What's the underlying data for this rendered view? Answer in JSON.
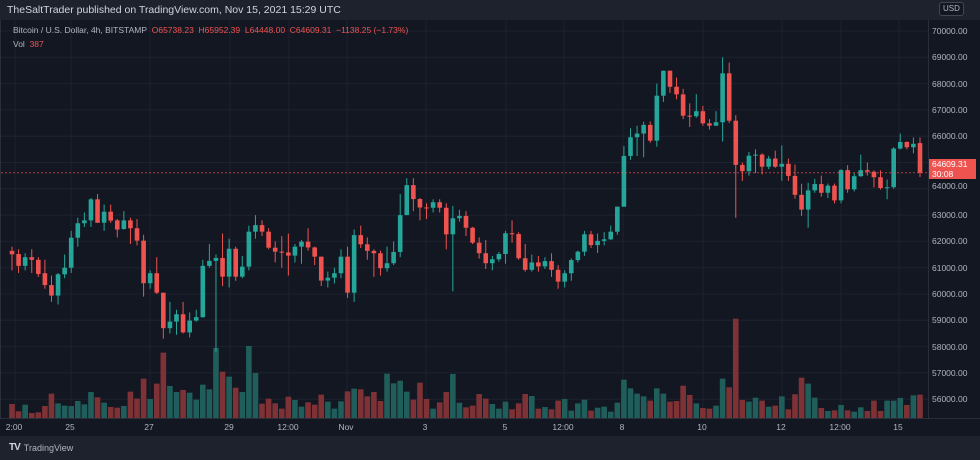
{
  "publisher_line": "TheSaltTrader published on TradingView.com, Nov 15, 2021 15:29 UTC",
  "legend": {
    "symbol": "Bitcoin / U.S. Dollar, 4h, BITSTAMP",
    "open": "O65738.23",
    "high": "H65952.39",
    "low": "L64448.00",
    "close": "C64609.31",
    "change": "−1138.25 (−1.73%)",
    "vol_label": "Vol",
    "vol_value": "387"
  },
  "price_axis": {
    "currency": "USD",
    "labels": [
      "70000.00",
      "69000.00",
      "68000.00",
      "67000.00",
      "66000.00",
      "65000.00",
      "64000.00",
      "63000.00",
      "62000.00",
      "61000.00",
      "60000.00",
      "59000.00",
      "58000.00",
      "57000.00",
      "56000.00"
    ],
    "last_price": "64609.31",
    "countdown": "30:08"
  },
  "time_axis": [
    "2:00",
    "25",
    "27",
    "29",
    "12:00",
    "Nov",
    "3",
    "5",
    "12:00",
    "8",
    "10",
    "12",
    "12:00",
    "15"
  ],
  "footer": {
    "brand": "TradingView"
  },
  "colors": {
    "up": "#26a69a",
    "down": "#ef5350",
    "vol_up": "#1f5e5b",
    "vol_down": "#7f3236",
    "bg": "#131722"
  },
  "chart_data": {
    "type": "candlestick",
    "symbol": "BTCUSD",
    "interval": "4h",
    "ylim": [
      55500,
      70500
    ],
    "last_price": 64609.31,
    "ohlc": [
      [
        61640,
        61800,
        60900,
        61510
      ],
      [
        61520,
        61700,
        60800,
        61070
      ],
      [
        61070,
        61550,
        60900,
        61400
      ],
      [
        61400,
        61700,
        60800,
        61300
      ],
      [
        61300,
        61400,
        60650,
        60760
      ],
      [
        60790,
        61300,
        60200,
        60340
      ],
      [
        60340,
        60700,
        59700,
        59940
      ],
      [
        59940,
        60800,
        59600,
        60750
      ],
      [
        60750,
        61500,
        60600,
        61000
      ],
      [
        61000,
        62400,
        60800,
        62140
      ],
      [
        62140,
        62900,
        61800,
        62690
      ],
      [
        62690,
        63100,
        62550,
        62800
      ],
      [
        62800,
        63650,
        62550,
        63600
      ],
      [
        63600,
        63800,
        62700,
        62710
      ],
      [
        62710,
        63400,
        62400,
        63130
      ],
      [
        63130,
        63400,
        62700,
        62790
      ],
      [
        62800,
        62850,
        62150,
        62450
      ],
      [
        62470,
        63150,
        62450,
        62800
      ],
      [
        62800,
        62900,
        61900,
        62500
      ],
      [
        62500,
        62850,
        61850,
        62030
      ],
      [
        62030,
        62250,
        59900,
        60410
      ],
      [
        60410,
        60900,
        60200,
        60790
      ],
      [
        60790,
        61400,
        60000,
        60050
      ],
      [
        60050,
        60000,
        58300,
        58700
      ],
      [
        58700,
        59700,
        58500,
        58950
      ],
      [
        58950,
        59400,
        58450,
        59230
      ],
      [
        59230,
        59700,
        58500,
        58540
      ],
      [
        58540,
        59300,
        58350,
        58990
      ],
      [
        58990,
        59400,
        58950,
        59120
      ],
      [
        59120,
        61300,
        59100,
        61070
      ],
      [
        61070,
        61900,
        61000,
        61260
      ],
      [
        61260,
        61500,
        57800,
        61370
      ],
      [
        61370,
        62300,
        60300,
        60660
      ],
      [
        60660,
        62100,
        60250,
        61720
      ],
      [
        61720,
        61800,
        60500,
        60660
      ],
      [
        60660,
        61450,
        60600,
        61040
      ],
      [
        61040,
        62600,
        60900,
        62370
      ],
      [
        62370,
        63000,
        62100,
        62620
      ],
      [
        62620,
        62800,
        62200,
        62370
      ],
      [
        62370,
        62500,
        61700,
        61760
      ],
      [
        61760,
        62000,
        61200,
        61610
      ],
      [
        61610,
        62200,
        61000,
        61580
      ],
      [
        61580,
        62300,
        60700,
        61460
      ],
      [
        61460,
        61900,
        61200,
        61800
      ],
      [
        61800,
        62050,
        61150,
        61990
      ],
      [
        61990,
        62500,
        61650,
        61770
      ],
      [
        61770,
        61800,
        61100,
        61420
      ],
      [
        61420,
        61420,
        60300,
        60510
      ],
      [
        60510,
        60850,
        60250,
        60620
      ],
      [
        60620,
        61000,
        60400,
        60790
      ],
      [
        60790,
        61700,
        60600,
        61420
      ],
      [
        61420,
        61800,
        59850,
        60050
      ],
      [
        60050,
        62450,
        59700,
        62240
      ],
      [
        62240,
        62600,
        61750,
        61890
      ],
      [
        61890,
        62150,
        61300,
        61640
      ],
      [
        61640,
        61700,
        60650,
        61550
      ],
      [
        61550,
        61650,
        60700,
        60980
      ],
      [
        60980,
        61800,
        60850,
        61170
      ],
      [
        61170,
        62000,
        61100,
        61600
      ],
      [
        61600,
        63800,
        61400,
        63000
      ],
      [
        63000,
        64400,
        63000,
        64140
      ],
      [
        64140,
        64400,
        63150,
        63610
      ],
      [
        63610,
        63650,
        62800,
        63290
      ],
      [
        63290,
        63450,
        62850,
        63280
      ],
      [
        63280,
        63600,
        63100,
        63490
      ],
      [
        63490,
        63600,
        63100,
        63280
      ],
      [
        63280,
        63450,
        61700,
        62270
      ],
      [
        62270,
        63350,
        60100,
        62880
      ],
      [
        62880,
        63200,
        62750,
        62970
      ],
      [
        62970,
        63150,
        62200,
        62520
      ],
      [
        62520,
        62550,
        61900,
        61950
      ],
      [
        61950,
        62150,
        61350,
        61550
      ],
      [
        61550,
        62050,
        60950,
        61170
      ],
      [
        61170,
        61450,
        60900,
        61320
      ],
      [
        61320,
        61600,
        61230,
        61520
      ],
      [
        61520,
        62400,
        61150,
        62310
      ],
      [
        62310,
        62800,
        61950,
        62280
      ],
      [
        62280,
        62350,
        61300,
        61360
      ],
      [
        61360,
        61900,
        60850,
        60920
      ],
      [
        60920,
        61500,
        60850,
        61200
      ],
      [
        61200,
        61450,
        60850,
        61050
      ],
      [
        61050,
        61400,
        60950,
        61250
      ],
      [
        61250,
        61550,
        60650,
        60920
      ],
      [
        60920,
        61100,
        60200,
        60470
      ],
      [
        60470,
        60900,
        60250,
        60790
      ],
      [
        60790,
        61350,
        60500,
        61290
      ],
      [
        61290,
        61650,
        61200,
        61610
      ],
      [
        61610,
        62400,
        61450,
        62270
      ],
      [
        62270,
        62400,
        61750,
        61860
      ],
      [
        61860,
        62300,
        61560,
        62020
      ],
      [
        62020,
        62350,
        61850,
        62080
      ],
      [
        62080,
        62600,
        62050,
        62370
      ],
      [
        62370,
        63320,
        62250,
        63320
      ],
      [
        63320,
        65620,
        63320,
        65250
      ],
      [
        65250,
        66300,
        65100,
        65960
      ],
      [
        65960,
        66400,
        65250,
        66100
      ],
      [
        66100,
        66550,
        65200,
        66430
      ],
      [
        66430,
        66560,
        65750,
        65830
      ],
      [
        65830,
        68000,
        65600,
        67540
      ],
      [
        67540,
        68500,
        67300,
        68490
      ],
      [
        68490,
        68500,
        67650,
        67880
      ],
      [
        67880,
        68230,
        67400,
        67590
      ],
      [
        67590,
        67800,
        66650,
        66780
      ],
      [
        66780,
        67250,
        66350,
        66760
      ],
      [
        66760,
        67600,
        66700,
        66950
      ],
      [
        66950,
        67150,
        66400,
        66490
      ],
      [
        66490,
        66650,
        66250,
        66400
      ],
      [
        66400,
        66950,
        66390,
        66530
      ],
      [
        66530,
        69000,
        65800,
        68390
      ],
      [
        68390,
        68800,
        66500,
        66590
      ],
      [
        66590,
        66800,
        62900,
        64910
      ],
      [
        64910,
        65000,
        64300,
        64670
      ],
      [
        64670,
        65400,
        64500,
        65260
      ],
      [
        65260,
        65500,
        64600,
        65300
      ],
      [
        65300,
        65350,
        64550,
        64840
      ],
      [
        64840,
        65250,
        64750,
        65150
      ],
      [
        65150,
        65450,
        64800,
        64840
      ],
      [
        64840,
        65650,
        64300,
        64950
      ],
      [
        64950,
        65150,
        64300,
        64490
      ],
      [
        64490,
        64920,
        63620,
        63770
      ],
      [
        63770,
        64190,
        62970,
        63210
      ],
      [
        63210,
        64230,
        62520,
        63940
      ],
      [
        63940,
        64380,
        63850,
        64180
      ],
      [
        64180,
        64500,
        63700,
        63850
      ],
      [
        63850,
        64200,
        63650,
        64120
      ],
      [
        64120,
        64200,
        63450,
        63560
      ],
      [
        63560,
        64750,
        63450,
        64710
      ],
      [
        64710,
        64900,
        63850,
        63980
      ],
      [
        63980,
        64600,
        63900,
        64480
      ],
      [
        64480,
        65300,
        64450,
        64710
      ],
      [
        64710,
        65000,
        64500,
        64650
      ],
      [
        64650,
        64700,
        64050,
        64440
      ],
      [
        64440,
        64700,
        63970,
        64030
      ],
      [
        64030,
        64350,
        63600,
        64060
      ],
      [
        64060,
        65580,
        64000,
        65530
      ],
      [
        65530,
        66100,
        65500,
        65780
      ],
      [
        65780,
        65800,
        65500,
        65580
      ],
      [
        65580,
        65950,
        65350,
        65710
      ],
      [
        65738.23,
        65952.39,
        64448,
        64609.31
      ]
    ],
    "volume": [
      232,
      111,
      221,
      83,
      94,
      199,
      404,
      243,
      205,
      199,
      282,
      227,
      431,
      343,
      254,
      182,
      171,
      199,
      437,
      321,
      653,
      315,
      570,
      1084,
      531,
      431,
      465,
      420,
      304,
      553,
      476,
      1161,
      769,
      686,
      503,
      431,
      1194,
      747,
      238,
      321,
      243,
      155,
      354,
      299,
      188,
      260,
      221,
      387,
      271,
      155,
      277,
      442,
      487,
      476,
      359,
      431,
      282,
      735,
      575,
      619,
      437,
      304,
      586,
      315,
      155,
      260,
      431,
      730,
      254,
      177,
      205,
      398,
      321,
      232,
      155,
      271,
      144,
      243,
      398,
      365,
      155,
      182,
      144,
      288,
      315,
      122,
      243,
      304,
      122,
      171,
      188,
      105,
      254,
      636,
      492,
      404,
      359,
      288,
      492,
      404,
      271,
      282,
      536,
      382,
      243,
      166,
      155,
      205,
      653,
      509,
      1648,
      299,
      271,
      337,
      288,
      188,
      205,
      359,
      144,
      393,
      669,
      570,
      337,
      166,
      116,
      127,
      216,
      127,
      105,
      177,
      116,
      288,
      116,
      288,
      288,
      332,
      216,
      376,
      387
    ]
  }
}
